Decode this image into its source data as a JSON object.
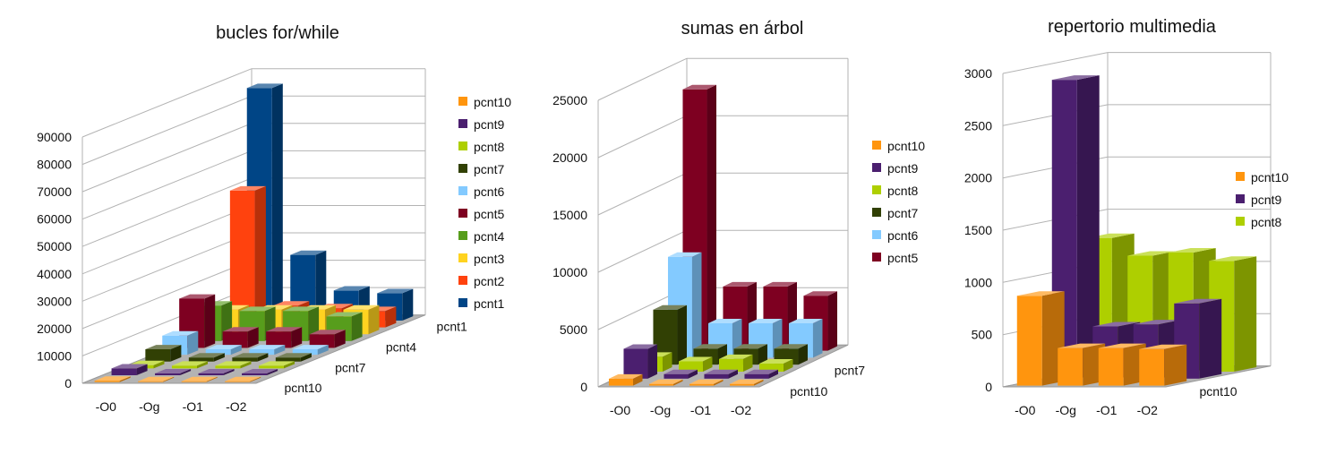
{
  "colors": {
    "pcnt10": "#ff950e",
    "pcnt9": "#4b1f6f",
    "pcnt8": "#aecf00",
    "pcnt7": "#314004",
    "pcnt6": "#83caff",
    "pcnt5": "#7e0021",
    "pcnt4": "#579d1c",
    "pcnt3": "#ffd320",
    "pcnt2": "#ff420e",
    "pcnt1": "#004586"
  },
  "chart_data": [
    {
      "type": "bar3d",
      "title": "bucles for/while",
      "categories": [
        "-O0",
        "-Og",
        "-O1",
        "-O2"
      ],
      "depth_labels_shown": [
        "pcnt1",
        "pcnt4",
        "pcnt7",
        "pcnt10"
      ],
      "ylim": [
        0,
        90000
      ],
      "yticks": [
        "0",
        "10000",
        "20000",
        "30000",
        "40000",
        "50000",
        "60000",
        "70000",
        "80000",
        "90000"
      ],
      "legend": [
        "pcnt10",
        "pcnt9",
        "pcnt8",
        "pcnt7",
        "pcnt6",
        "pcnt5",
        "pcnt4",
        "pcnt3",
        "pcnt2",
        "pcnt1"
      ],
      "series": [
        {
          "name": "pcnt10",
          "values": [
            500,
            300,
            300,
            300
          ]
        },
        {
          "name": "pcnt9",
          "values": [
            2500,
            700,
            700,
            700
          ]
        },
        {
          "name": "pcnt8",
          "values": [
            1200,
            1000,
            1000,
            1000
          ]
        },
        {
          "name": "pcnt7",
          "values": [
            4500,
            1500,
            1500,
            1500
          ]
        },
        {
          "name": "pcnt6",
          "values": [
            7000,
            2000,
            2000,
            2000
          ]
        },
        {
          "name": "pcnt5",
          "values": [
            18000,
            6000,
            6000,
            5000
          ]
        },
        {
          "name": "pcnt4",
          "values": [
            13000,
            11000,
            11000,
            9000
          ]
        },
        {
          "name": "pcnt3",
          "values": [
            9000,
            9000,
            9000,
            9000
          ]
        },
        {
          "name": "pcnt2",
          "values": [
            50000,
            8000,
            7000,
            6000
          ]
        },
        {
          "name": "pcnt1",
          "values": [
            85000,
            24000,
            11000,
            10000
          ]
        }
      ],
      "legend_placement": "right",
      "grid": true
    },
    {
      "type": "bar3d",
      "title": "sumas en árbol",
      "categories": [
        "-O0",
        "-Og",
        "-O1",
        "-O2"
      ],
      "depth_labels_shown": [
        "pcnt7",
        "pcnt10"
      ],
      "ylim": [
        0,
        25000
      ],
      "yticks": [
        "0",
        "5000",
        "10000",
        "15000",
        "20000",
        "25000"
      ],
      "legend": [
        "pcnt10",
        "pcnt9",
        "pcnt8",
        "pcnt7",
        "pcnt6",
        "pcnt5"
      ],
      "series": [
        {
          "name": "pcnt10",
          "values": [
            600,
            150,
            150,
            150
          ]
        },
        {
          "name": "pcnt9",
          "values": [
            2600,
            400,
            400,
            400
          ]
        },
        {
          "name": "pcnt8",
          "values": [
            1300,
            900,
            1100,
            700
          ]
        },
        {
          "name": "pcnt7",
          "values": [
            4800,
            1400,
            1400,
            1400
          ]
        },
        {
          "name": "pcnt6",
          "values": [
            8800,
            3000,
            3000,
            3000
          ]
        },
        {
          "name": "pcnt5",
          "values": [
            22800,
            5600,
            5600,
            4800
          ]
        }
      ],
      "legend_placement": "right",
      "grid": true
    },
    {
      "type": "bar3d",
      "title": "repertorio multimedia",
      "categories": [
        "-O0",
        "-Og",
        "-O1",
        "-O2"
      ],
      "depth_labels_shown": [
        "pcnt10"
      ],
      "ylim": [
        0,
        3000
      ],
      "yticks": [
        "0",
        "500",
        "1000",
        "1500",
        "2000",
        "2500",
        "3000"
      ],
      "legend": [
        "pcnt10",
        "pcnt9",
        "pcnt8"
      ],
      "series": [
        {
          "name": "pcnt10",
          "values": [
            860,
            360,
            360,
            350
          ]
        },
        {
          "name": "pcnt9",
          "values": [
            2860,
            500,
            520,
            720
          ]
        },
        {
          "name": "pcnt8",
          "values": [
            1280,
            1110,
            1140,
            1060
          ]
        }
      ],
      "legend_placement": "right",
      "grid": true
    }
  ]
}
